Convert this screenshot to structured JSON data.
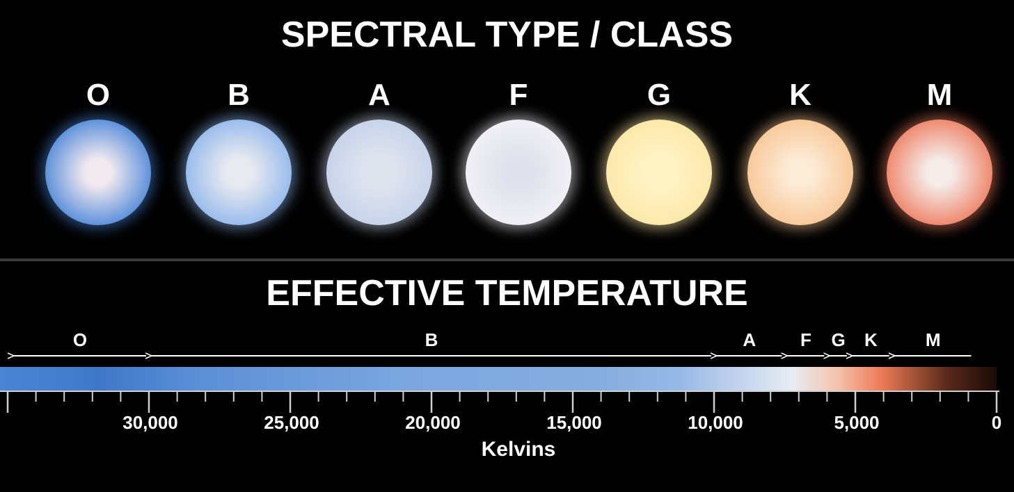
{
  "top": {
    "title": "SPECTRAL TYPE / CLASS",
    "classes": [
      {
        "letter": "O",
        "color_center": "#f1e9ef",
        "color_edge": "#4a86d8"
      },
      {
        "letter": "B",
        "color_center": "#e9eaf0",
        "color_edge": "#8fb6ec"
      },
      {
        "letter": "A",
        "color_center": "#dfe4ef",
        "color_edge": "#c5d2ea"
      },
      {
        "letter": "F",
        "color_center": "#dfe2ec",
        "color_edge": "#f2f2f7"
      },
      {
        "letter": "G",
        "color_center": "#fff3c6",
        "color_edge": "#fde7a6"
      },
      {
        "letter": "K",
        "color_center": "#fcebd6",
        "color_edge": "#f8c592"
      },
      {
        "letter": "M",
        "color_center": "#f5ebe8",
        "color_edge": "#ee7d60"
      }
    ]
  },
  "bottom": {
    "title": "EFFECTIVE TEMPERATURE",
    "axis_label": "Kelvins",
    "axis_ticks": [
      "30,000",
      "25,000",
      "20,000",
      "15,000",
      "10,000",
      "5,000",
      "0"
    ],
    "ranges": [
      {
        "label": "O",
        "from_k": 35000,
        "to_k": 30000
      },
      {
        "label": "B",
        "from_k": 30000,
        "to_k": 10000
      },
      {
        "label": "A",
        "from_k": 10000,
        "to_k": 7500
      },
      {
        "label": "F",
        "from_k": 7500,
        "to_k": 6000
      },
      {
        "label": "G",
        "from_k": 6000,
        "to_k": 5200
      },
      {
        "label": "K",
        "from_k": 5200,
        "to_k": 3700
      },
      {
        "label": "M",
        "from_k": 3700,
        "to_k": 800
      }
    ],
    "gradient_colors": [
      "#4a84d4",
      "#3f78c8",
      "#5c8fd6",
      "#7aa6e0",
      "#86addf",
      "#96b8e6",
      "#e7ecf3",
      "#f4c3ad",
      "#ec7a55",
      "#5a2a1c",
      "#1a0a06"
    ]
  },
  "chart_data": {
    "type": "scale",
    "axis": {
      "label": "Kelvins",
      "reversed": true,
      "range_k": [
        36000,
        0
      ],
      "major_step_k": 5000,
      "minor_step_k": 1000
    },
    "tick_labels": [
      "30,000",
      "25,000",
      "20,000",
      "15,000",
      "10,000",
      "5,000",
      "0"
    ]
  }
}
